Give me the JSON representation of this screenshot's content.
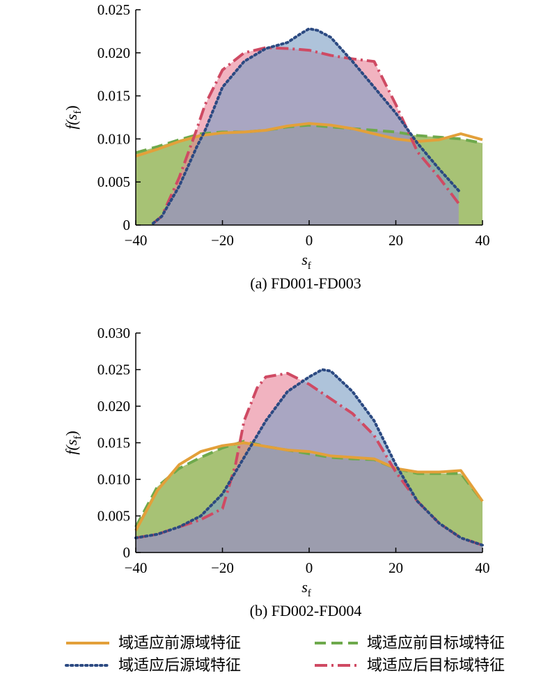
{
  "colors": {
    "before_source": "#e3a03a",
    "before_target": "#6ea94c",
    "after_source": "#2c4a82",
    "after_target": "#cf4a63",
    "fill_green": "#9dbb66",
    "fill_red": "#e8859a",
    "fill_blue": "#7d9ec4"
  },
  "legend": {
    "entries": [
      {
        "key": "before_source",
        "label": "域适应前源域特征",
        "style": "solid"
      },
      {
        "key": "before_target",
        "label": "域适应前目标域特征",
        "style": "dashed"
      },
      {
        "key": "after_source",
        "label": "域适应后源域特征",
        "style": "dotted"
      },
      {
        "key": "after_target",
        "label": "域适应后目标域特征",
        "style": "dashdot"
      }
    ]
  },
  "chart_data": [
    {
      "type": "area",
      "caption": "(a) FD001-FD003",
      "xlabel_main": "s",
      "xlabel_sub": "f",
      "ylabel_main": "f(s",
      "ylabel_sub": "f",
      "ylabel_close": ")",
      "xlim": [
        -40,
        40
      ],
      "ylim": [
        0,
        0.025
      ],
      "xticks": [
        -40,
        -20,
        0,
        20,
        40
      ],
      "xtick_labels": [
        "−40",
        "−20",
        "0",
        "20",
        "40"
      ],
      "yticks": [
        0,
        0.005,
        0.01,
        0.015,
        0.02,
        0.025
      ],
      "ytick_labels": [
        "0",
        "0.005",
        "0.010",
        "0.015",
        "0.020",
        "0.025"
      ],
      "series": [
        {
          "key": "before_target",
          "x": [
            -40,
            -35,
            -30,
            -25,
            -20,
            -15,
            -10,
            -5,
            0,
            5,
            10,
            15,
            20,
            25,
            30,
            35,
            40
          ],
          "y": [
            0.0084,
            0.0091,
            0.0099,
            0.0106,
            0.0108,
            0.0108,
            0.011,
            0.0114,
            0.0116,
            0.0114,
            0.0112,
            0.011,
            0.0108,
            0.0104,
            0.0102,
            0.01,
            0.0095
          ]
        },
        {
          "key": "before_source",
          "x": [
            -40,
            -35,
            -30,
            -25,
            -20,
            -15,
            -10,
            -5,
            0,
            5,
            10,
            15,
            20,
            25,
            30,
            35,
            40
          ],
          "y": [
            0.008,
            0.0088,
            0.0097,
            0.0104,
            0.0107,
            0.0108,
            0.011,
            0.0115,
            0.0118,
            0.0116,
            0.0112,
            0.0106,
            0.01,
            0.0097,
            0.0099,
            0.0106,
            0.0099
          ]
        },
        {
          "key": "after_target",
          "x": [
            -36,
            -34,
            -30,
            -26,
            -24,
            -20,
            -15,
            -10,
            -5,
            0,
            5,
            10,
            15,
            20,
            25,
            30,
            34.5
          ],
          "y": [
            0.0002,
            0.001,
            0.0055,
            0.011,
            0.014,
            0.018,
            0.02,
            0.0206,
            0.0205,
            0.0203,
            0.0197,
            0.0193,
            0.019,
            0.014,
            0.0085,
            0.0055,
            0.0025
          ]
        },
        {
          "key": "after_source",
          "x": [
            -36,
            -34,
            -30,
            -26,
            -24,
            -20,
            -15,
            -10,
            -5,
            -2,
            0,
            2,
            5,
            10,
            15,
            20,
            25,
            30,
            34.5
          ],
          "y": [
            0.0002,
            0.001,
            0.0045,
            0.009,
            0.011,
            0.016,
            0.019,
            0.0205,
            0.0212,
            0.0222,
            0.0228,
            0.0226,
            0.0218,
            0.019,
            0.016,
            0.013,
            0.0095,
            0.0065,
            0.004
          ]
        }
      ]
    },
    {
      "type": "area",
      "caption": "(b) FD002-FD004",
      "xlabel_main": "s",
      "xlabel_sub": "f",
      "ylabel_main": "f(s",
      "ylabel_sub": "f",
      "ylabel_close": ")",
      "xlim": [
        -40,
        40
      ],
      "ylim": [
        0,
        0.03
      ],
      "xticks": [
        -40,
        -20,
        0,
        20,
        40
      ],
      "xtick_labels": [
        "−40",
        "−20",
        "0",
        "20",
        "40"
      ],
      "yticks": [
        0,
        0.005,
        0.01,
        0.015,
        0.02,
        0.025,
        0.03
      ],
      "ytick_labels": [
        "0",
        "0.005",
        "0.010",
        "0.015",
        "0.020",
        "0.025",
        "0.030"
      ],
      "series": [
        {
          "key": "before_target",
          "x": [
            -40,
            -35,
            -30,
            -25,
            -20,
            -15,
            -10,
            -5,
            0,
            5,
            10,
            15,
            20,
            25,
            30,
            35,
            40
          ],
          "y": [
            0.0035,
            0.009,
            0.0115,
            0.013,
            0.0143,
            0.0152,
            0.0145,
            0.014,
            0.0135,
            0.013,
            0.0128,
            0.0127,
            0.0115,
            0.0108,
            0.0108,
            0.0108,
            0.007
          ]
        },
        {
          "key": "before_source",
          "x": [
            -40,
            -35,
            -30,
            -25,
            -20,
            -15,
            -10,
            -5,
            0,
            5,
            10,
            15,
            20,
            25,
            30,
            35,
            40
          ],
          "y": [
            0.003,
            0.0085,
            0.012,
            0.0138,
            0.0146,
            0.015,
            0.0145,
            0.014,
            0.0138,
            0.0132,
            0.013,
            0.0128,
            0.0115,
            0.011,
            0.011,
            0.0112,
            0.007
          ]
        },
        {
          "key": "after_target",
          "x": [
            -40,
            -35,
            -30,
            -25,
            -20,
            -17,
            -15,
            -12,
            -10,
            -5,
            0,
            5,
            10,
            15,
            20,
            25,
            30,
            35,
            40
          ],
          "y": [
            0.002,
            0.0025,
            0.0035,
            0.0045,
            0.006,
            0.012,
            0.018,
            0.0225,
            0.024,
            0.0245,
            0.023,
            0.021,
            0.019,
            0.016,
            0.011,
            0.007,
            0.004,
            0.002,
            0.001
          ]
        },
        {
          "key": "after_source",
          "x": [
            -40,
            -35,
            -30,
            -25,
            -20,
            -15,
            -10,
            -5,
            0,
            3,
            5,
            10,
            15,
            20,
            25,
            30,
            35,
            40
          ],
          "y": [
            0.002,
            0.0025,
            0.0035,
            0.005,
            0.008,
            0.013,
            0.018,
            0.022,
            0.024,
            0.025,
            0.0248,
            0.022,
            0.018,
            0.012,
            0.007,
            0.004,
            0.002,
            0.001
          ]
        }
      ]
    }
  ]
}
